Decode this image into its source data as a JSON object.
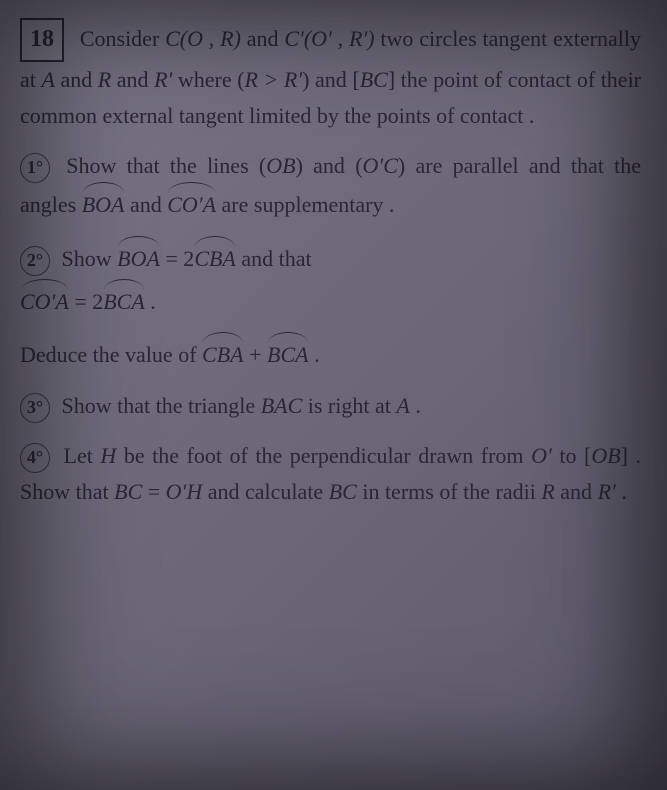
{
  "problem": {
    "number": "18",
    "intro_parts": [
      "Consider ",
      "C(O , R)",
      " and ",
      "C′(O′ , R′)",
      " two circles tangent externally at ",
      "A",
      " and ",
      "R",
      " and ",
      "R′",
      " where (",
      "R > R′",
      ") and [",
      "BC",
      "] the point of contact of their common external tangent limited by the points of contact ."
    ]
  },
  "q1": {
    "num": "1°",
    "t1": "Show that the lines (",
    "ob": "OB",
    "t2": ") and (",
    "oc": "O′C",
    "t3": ") are parallel and that the angles ",
    "boa": "BOA",
    "t4": " and ",
    "coa": "CO′A",
    "t5": " are supplementary ."
  },
  "q2": {
    "num": "2°",
    "t1": "Show ",
    "boa": "BOA",
    "eq1": " = 2",
    "cba": "CBA",
    "t2": " and that",
    "coa": "CO′A",
    "eq2": " = 2",
    "bca": "BCA",
    "dot": " .",
    "ded1": "Deduce the value of ",
    "cba2": "CBA",
    "plus": " + ",
    "bca2": "BCA",
    "dot2": " ."
  },
  "q3": {
    "num": "3°",
    "t1": "Show that the triangle ",
    "bac": "BAC",
    "t2": " is right at ",
    "a": "A",
    "dot": " ."
  },
  "q4": {
    "num": "4°",
    "t1": "Let ",
    "h": "H",
    "t2": " be the foot of the perpendicular drawn from ",
    "op": "O′",
    "t3": " to [",
    "ob": "OB",
    "t4": "] . Show that ",
    "bc": "BC",
    "eq": " = ",
    "oh": "O′H",
    "t5": " and calculate ",
    "bc2": "BC",
    "t6": " in terms of the radii ",
    "r": "R",
    "t7": " and ",
    "rp": "R′",
    "dot": " ."
  }
}
